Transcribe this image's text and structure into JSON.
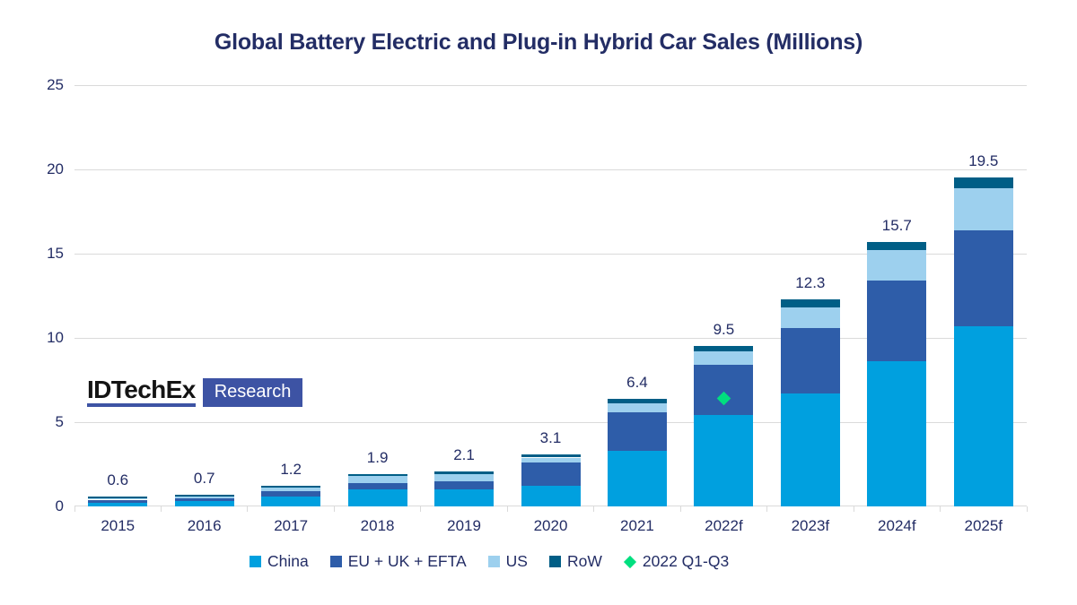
{
  "title": "Global Battery Electric and Plug-in Hybrid Car Sales (Millions)",
  "logo": {
    "brand": "IDTechEx",
    "suffix": "Research"
  },
  "colors": {
    "china": "#00A0DF",
    "eu": "#2E5DA9",
    "us": "#9DD0EE",
    "row": "#005E86",
    "marker": "#00DF7F",
    "text": "#232D65",
    "grid": "#DADADA",
    "logo_accent": "#3D53A4"
  },
  "chart_data": {
    "type": "bar",
    "stacked": true,
    "title": "Global Battery Electric and Plug-in Hybrid Car Sales (Millions)",
    "xlabel": "",
    "ylabel": "",
    "ylim": [
      0,
      25
    ],
    "yticks": [
      0,
      5,
      10,
      15,
      20,
      25
    ],
    "grid": "horizontal",
    "legend_position": "bottom",
    "categories": [
      "2015",
      "2016",
      "2017",
      "2018",
      "2019",
      "2020",
      "2021",
      "2022f",
      "2023f",
      "2024f",
      "2025f"
    ],
    "series": [
      {
        "name": "China",
        "color_key": "china",
        "values": [
          0.2,
          0.3,
          0.6,
          1.0,
          1.0,
          1.2,
          3.3,
          5.4,
          6.7,
          8.6,
          10.7
        ]
      },
      {
        "name": "EU + UK + EFTA",
        "color_key": "eu",
        "values": [
          0.2,
          0.2,
          0.3,
          0.4,
          0.5,
          1.4,
          2.3,
          3.0,
          3.9,
          4.8,
          5.7
        ]
      },
      {
        "name": "US",
        "color_key": "us",
        "values": [
          0.1,
          0.1,
          0.2,
          0.4,
          0.4,
          0.3,
          0.5,
          0.8,
          1.2,
          1.8,
          2.5
        ]
      },
      {
        "name": "RoW",
        "color_key": "row",
        "values": [
          0.1,
          0.1,
          0.1,
          0.1,
          0.2,
          0.2,
          0.3,
          0.3,
          0.5,
          0.5,
          0.6
        ]
      }
    ],
    "totals": [
      0.6,
      0.7,
      1.2,
      1.9,
      2.1,
      3.1,
      6.4,
      9.5,
      12.3,
      15.7,
      19.5
    ],
    "marker": {
      "name": "2022 Q1-Q3",
      "category": "2022f",
      "value": 6.4,
      "shape": "diamond",
      "color_key": "marker"
    }
  }
}
